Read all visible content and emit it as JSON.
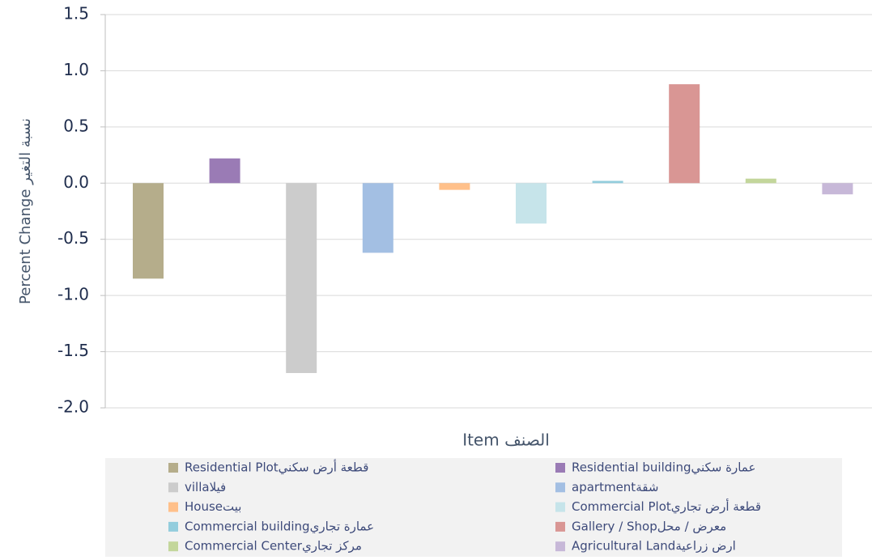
{
  "chart_data": {
    "type": "bar",
    "y_label": "Percent Change نسبة التغير",
    "x_label": "الصنف Item",
    "categories": [
      "قطعة أرض سكنيResidential Plot",
      "عمارة سكنيResidential building",
      "فيلاvilla",
      "شقةapartment",
      "بيتHouse",
      "قطعة أرض تجاريCommercial Plot",
      "عمارة تجاريCommercial building",
      "معرض / محلGallery / Shop",
      "مركز تجاريCommercial Center",
      "ارض زراعيةAgricultural Land"
    ],
    "values": [
      -0.85,
      0.22,
      -1.69,
      -0.62,
      -0.06,
      -0.36,
      0.02,
      0.88,
      0.04,
      -0.1
    ],
    "colors": [
      "#b5ad8b",
      "#9a7bb5",
      "#cccccc",
      "#a3bfe3",
      "#ffc08a",
      "#c6e4ea",
      "#93cddd",
      "#d99694",
      "#c3d69b",
      "#c7b8d8"
    ],
    "ylim": [
      -2.0,
      1.5
    ],
    "yticks": [
      {
        "value": -2.0,
        "label": "-2.0"
      },
      -1.5,
      {
        "value": -1.0,
        "label": "-1.0"
      },
      -0.5,
      {
        "value": 0.0,
        "label": "0.0"
      },
      0.5,
      {
        "value": 1.0,
        "label": "1.0"
      },
      1.5
    ],
    "grid": true
  }
}
